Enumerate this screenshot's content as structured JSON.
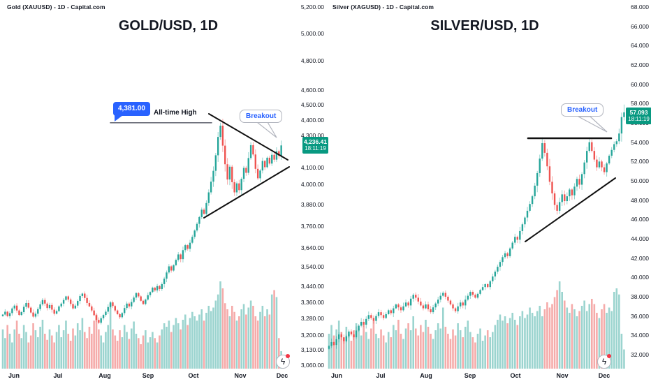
{
  "gold": {
    "header": "Gold (XAUUSD) - 1D - Capital.com",
    "title": "GOLD/USD, 1D",
    "badge": {
      "price": "4,236.41",
      "time": "18:11:19"
    },
    "ath_flag": "4,381.00",
    "ath_note": "All-time High",
    "breakout_label": "Breakout",
    "bolt_glyph": "ϟ"
  },
  "silver": {
    "header": "Silver (XAGUSD) - 1D - Capital.com",
    "title": "SILVER/USD, 1D",
    "badge": {
      "price": "57.093",
      "time": "18:11:19"
    },
    "breakout_label": "Breakout",
    "bolt_glyph": "ϟ"
  },
  "colors": {
    "up": "#26a69a",
    "down": "#ef5350",
    "wick_up": "#26a69a",
    "wick_down": "#ef5350",
    "vol_up": "#9bd4cf",
    "vol_down": "#f5abaa",
    "badge": "#089981",
    "accent_blue": "#2962ff",
    "trendline": "#101010",
    "ath_line": "#6a6d78",
    "text": "#131722"
  },
  "chart_data": [
    {
      "type": "candlestick",
      "symbol": "GOLD/USD",
      "timeframe": "1D",
      "provider": "Capital.com",
      "title": "GOLD/USD, 1D",
      "last_price": 4236.41,
      "last_time": "18:11:19",
      "all_time_high": 4381.0,
      "y_axis": {
        "scale": "log",
        "ticks": [
          {
            "label": "5,200.00",
            "value": 5200
          },
          {
            "label": "5,000.00",
            "value": 5000
          },
          {
            "label": "4,800.00",
            "value": 4800
          },
          {
            "label": "4,600.00",
            "value": 4600
          },
          {
            "label": "4,500.00",
            "value": 4500
          },
          {
            "label": "4,400.00",
            "value": 4400
          },
          {
            "label": "4,300.00",
            "value": 4300
          },
          {
            "label": "4,100.00",
            "value": 4100
          },
          {
            "label": "4,000.00",
            "value": 4000
          },
          {
            "label": "3,880.00",
            "value": 3880
          },
          {
            "label": "3,760.00",
            "value": 3760
          },
          {
            "label": "3,640.00",
            "value": 3640
          },
          {
            "label": "3,540.00",
            "value": 3540
          },
          {
            "label": "3,440.00",
            "value": 3440
          },
          {
            "label": "3,360.00",
            "value": 3360
          },
          {
            "label": "3,280.00",
            "value": 3280
          },
          {
            "label": "3,200.00",
            "value": 3200
          },
          {
            "label": "3,130.00",
            "value": 3130
          },
          {
            "label": "3,060.00",
            "value": 3060
          }
        ]
      },
      "x_ticks": [
        "Jun",
        "Jul",
        "Aug",
        "Sep",
        "Oct",
        "Nov",
        "Dec"
      ],
      "first_open": 3290,
      "closes": [
        3298,
        3312,
        3290,
        3305,
        3328,
        3342,
        3318,
        3296,
        3310,
        3336,
        3355,
        3332,
        3308,
        3288,
        3302,
        3325,
        3348,
        3370,
        3352,
        3330,
        3345,
        3322,
        3302,
        3315,
        3338,
        3352,
        3370,
        3388,
        3372,
        3350,
        3328,
        3342,
        3365,
        3390,
        3402,
        3380,
        3355,
        3338,
        3318,
        3295,
        3272,
        3258,
        3280,
        3296,
        3312,
        3335,
        3358,
        3340,
        3318,
        3300,
        3285,
        3305,
        3330,
        3352,
        3338,
        3360,
        3382,
        3404,
        3388,
        3366,
        3350,
        3372,
        3394,
        3410,
        3432,
        3418,
        3440,
        3425,
        3450,
        3478,
        3510,
        3542,
        3520,
        3548,
        3576,
        3605,
        3580,
        3628,
        3655,
        3635,
        3668,
        3700,
        3735,
        3772,
        3810,
        3852,
        3828,
        3890,
        3952,
        4015,
        4080,
        4175,
        4290,
        4362,
        4235,
        4120,
        4028,
        4105,
        4012,
        3952,
        4005,
        3965,
        4032,
        4098,
        4068,
        4158,
        4238,
        4180,
        4092,
        4035,
        4082,
        4140,
        4102,
        4160,
        4124,
        4178,
        4148,
        4200,
        4172,
        4236.41
      ],
      "volumes": [
        0.45,
        0.35,
        0.5,
        0.4,
        0.3,
        0.45,
        0.55,
        0.4,
        0.35,
        0.5,
        0.42,
        0.3,
        0.38,
        0.52,
        0.44,
        0.36,
        0.48,
        0.56,
        0.4,
        0.33,
        0.45,
        0.38,
        0.3,
        0.42,
        0.5,
        0.36,
        0.44,
        0.55,
        0.4,
        0.32,
        0.46,
        0.38,
        0.52,
        0.44,
        0.58,
        0.42,
        0.35,
        0.48,
        0.4,
        0.55,
        0.62,
        0.45,
        0.38,
        0.3,
        0.42,
        0.5,
        0.75,
        0.45,
        0.38,
        0.32,
        0.44,
        0.36,
        0.5,
        0.42,
        0.34,
        0.46,
        0.54,
        0.4,
        0.35,
        0.28,
        0.38,
        0.44,
        0.3,
        0.36,
        0.42,
        0.35,
        0.3,
        0.38,
        0.45,
        0.52,
        0.48,
        0.55,
        0.42,
        0.5,
        0.58,
        0.52,
        0.45,
        0.56,
        0.62,
        0.5,
        0.58,
        0.65,
        0.6,
        0.55,
        0.62,
        0.68,
        0.55,
        0.64,
        0.72,
        0.66,
        0.7,
        0.78,
        0.85,
        1.0,
        0.92,
        0.75,
        0.68,
        0.6,
        0.72,
        0.65,
        0.55,
        0.6,
        0.68,
        0.74,
        0.62,
        0.7,
        0.78,
        0.72,
        0.6,
        0.55,
        0.65,
        0.72,
        0.6,
        0.68,
        0.62,
        0.85,
        0.9,
        0.82,
        0.35,
        0.2
      ],
      "high_overrides": {
        "93": 4381
      },
      "annotations": {
        "ath_line_price": 4381,
        "pattern": "symmetrical triangle with descending and ascending trendlines",
        "breakout": true
      }
    },
    {
      "type": "candlestick",
      "symbol": "SILVER/USD",
      "timeframe": "1D",
      "provider": "Capital.com",
      "title": "SILVER/USD, 1D",
      "last_price": 57.093,
      "last_time": "18:11:19",
      "y_axis": {
        "scale": "linear",
        "ticks": [
          {
            "label": "68.000",
            "value": 68
          },
          {
            "label": "66.000",
            "value": 66
          },
          {
            "label": "64.000",
            "value": 64
          },
          {
            "label": "62.000",
            "value": 62
          },
          {
            "label": "60.000",
            "value": 60
          },
          {
            "label": "58.000",
            "value": 58
          },
          {
            "label": "56.000",
            "value": 56
          },
          {
            "label": "54.000",
            "value": 54
          },
          {
            "label": "52.000",
            "value": 52
          },
          {
            "label": "50.000",
            "value": 50
          },
          {
            "label": "48.000",
            "value": 48
          },
          {
            "label": "46.000",
            "value": 46
          },
          {
            "label": "44.000",
            "value": 44
          },
          {
            "label": "42.000",
            "value": 42
          },
          {
            "label": "40.000",
            "value": 40
          },
          {
            "label": "38.000",
            "value": 38
          },
          {
            "label": "36.000",
            "value": 36
          },
          {
            "label": "34.000",
            "value": 34
          },
          {
            "label": "32.000",
            "value": 32
          }
        ]
      },
      "x_ticks": [
        "Jun",
        "Jul",
        "Aug",
        "Sep",
        "Oct",
        "Nov",
        "Dec"
      ],
      "first_open": 32.6,
      "closes": [
        32.9,
        33.3,
        33.0,
        33.6,
        34.1,
        33.8,
        33.4,
        33.9,
        34.4,
        34.1,
        33.8,
        34.5,
        35.0,
        35.4,
        35.1,
        35.7,
        36.1,
        35.8,
        35.5,
        36.0,
        36.4,
        36.1,
        35.8,
        36.2,
        36.6,
        36.3,
        36.8,
        37.2,
        36.9,
        36.6,
        37.0,
        37.4,
        37.1,
        37.8,
        38.2,
        37.9,
        37.5,
        37.1,
        36.8,
        37.2,
        36.7,
        36.4,
        36.9,
        37.3,
        37.7,
        38.1,
        38.4,
        38.0,
        37.6,
        37.2,
        36.8,
        36.5,
        37.0,
        37.4,
        37.1,
        37.7,
        38.1,
        38.5,
        38.2,
        37.9,
        38.3,
        38.7,
        39.0,
        39.3,
        39.0,
        39.6,
        40.1,
        40.6,
        41.1,
        41.6,
        42.1,
        42.5,
        42.2,
        43.0,
        43.6,
        44.2,
        43.9,
        44.8,
        45.5,
        46.2,
        46.9,
        47.6,
        48.4,
        49.5,
        50.8,
        52.3,
        53.9,
        52.9,
        51.5,
        49.9,
        48.7,
        47.5,
        46.9,
        47.8,
        48.6,
        47.9,
        48.4,
        49.1,
        48.5,
        49.4,
        50.2,
        49.6,
        50.7,
        51.9,
        53.1,
        54.0,
        53.1,
        52.2,
        51.4,
        52.0,
        51.4,
        50.9,
        51.8,
        52.6,
        53.2,
        53.8,
        54.1,
        54.9,
        56.6,
        57.093
      ],
      "volumes": [
        0.4,
        0.5,
        0.38,
        0.45,
        0.55,
        0.42,
        0.35,
        0.48,
        0.4,
        0.32,
        0.44,
        0.52,
        0.46,
        0.38,
        0.5,
        0.42,
        0.34,
        0.46,
        0.55,
        0.4,
        0.35,
        0.45,
        0.38,
        0.3,
        0.42,
        0.36,
        0.5,
        0.44,
        0.56,
        0.4,
        0.34,
        0.46,
        0.52,
        0.44,
        0.6,
        0.46,
        0.38,
        0.5,
        0.42,
        0.56,
        0.48,
        0.4,
        0.34,
        0.44,
        0.52,
        0.46,
        0.7,
        0.48,
        0.4,
        0.34,
        0.45,
        0.38,
        0.52,
        0.44,
        0.36,
        0.48,
        0.55,
        0.42,
        0.36,
        0.3,
        0.4,
        0.46,
        0.32,
        0.38,
        0.44,
        0.36,
        0.42,
        0.5,
        0.56,
        0.62,
        0.55,
        0.6,
        0.52,
        0.58,
        0.64,
        0.56,
        0.5,
        0.6,
        0.66,
        0.58,
        0.62,
        0.7,
        0.64,
        0.6,
        0.66,
        0.72,
        0.6,
        0.68,
        0.76,
        0.7,
        0.74,
        0.82,
        0.9,
        1.0,
        0.88,
        0.78,
        0.7,
        0.64,
        0.74,
        0.68,
        0.6,
        0.66,
        0.72,
        0.78,
        0.66,
        0.74,
        0.8,
        0.74,
        0.64,
        0.58,
        0.68,
        0.74,
        0.64,
        0.7,
        0.66,
        0.88,
        0.92,
        0.85,
        0.4,
        0.22
      ],
      "high_overrides": {
        "86": 54.5,
        "105": 54.5,
        "119": 57.9
      },
      "annotations": {
        "resistance_price": 54.4,
        "pattern": "ascending triangle with horizontal resistance",
        "breakout": true
      }
    }
  ]
}
